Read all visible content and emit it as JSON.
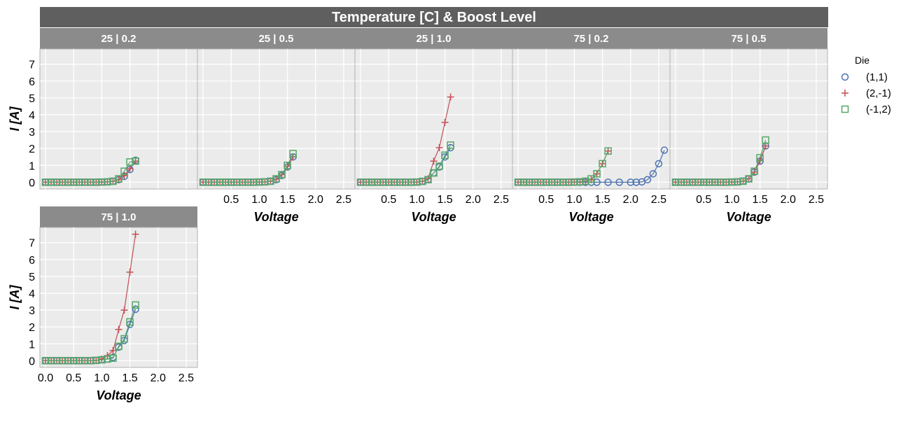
{
  "chart_data": {
    "type": "scatter",
    "title": "Temperature [C] & Boost Level",
    "xlabel": "Voltage",
    "ylabel": "I [A]",
    "xlim": [
      -0.1,
      2.7
    ],
    "ylim": [
      -0.4,
      7.9
    ],
    "xticks": [
      0.0,
      0.5,
      1.0,
      1.5,
      2.0,
      2.5
    ],
    "xtick_labels": [
      "0.0",
      "0.5",
      "1.0",
      "1.5",
      "2.0",
      "2.5"
    ],
    "yticks": [
      0,
      1,
      2,
      3,
      4,
      5,
      6,
      7
    ],
    "ytick_labels": [
      "0",
      "1",
      "2",
      "3",
      "4",
      "5",
      "6",
      "7"
    ],
    "grid": true,
    "legend": {
      "title": "Die",
      "position": "right",
      "entries": [
        {
          "name": "(1,1)",
          "marker": "circle",
          "color": "#4c72b0"
        },
        {
          "name": "(2,-1)",
          "marker": "plus",
          "color": "#c44e52"
        },
        {
          "name": "(-1,2)",
          "marker": "square",
          "color": "#55a868"
        }
      ]
    },
    "facets": [
      {
        "label": "25 | 0.2",
        "series": [
          {
            "name": "(1,1)",
            "x": [
              0.0,
              0.1,
              0.2,
              0.3,
              0.4,
              0.5,
              0.6,
              0.7,
              0.8,
              0.9,
              1.0,
              1.1,
              1.2,
              1.3,
              1.4,
              1.5,
              1.6
            ],
            "y": [
              0,
              0,
              0,
              0,
              0,
              0,
              0,
              0,
              0,
              0,
              0.01,
              0.02,
              0.05,
              0.15,
              0.35,
              0.75,
              1.3
            ]
          },
          {
            "name": "(2,-1)",
            "x": [
              0.0,
              0.1,
              0.2,
              0.3,
              0.4,
              0.5,
              0.6,
              0.7,
              0.8,
              0.9,
              1.0,
              1.1,
              1.2,
              1.3,
              1.4,
              1.5,
              1.6
            ],
            "y": [
              0,
              0,
              0,
              0,
              0,
              0,
              0,
              0,
              0,
              0,
              0.01,
              0.02,
              0.06,
              0.15,
              0.4,
              0.8,
              1.25
            ]
          },
          {
            "name": "(-1,2)",
            "x": [
              0.0,
              0.1,
              0.2,
              0.3,
              0.4,
              0.5,
              0.6,
              0.7,
              0.8,
              0.9,
              1.0,
              1.1,
              1.2,
              1.3,
              1.4,
              1.5,
              1.6
            ],
            "y": [
              0,
              0,
              0,
              0,
              0,
              0,
              0,
              0,
              0,
              0,
              0.01,
              0.02,
              0.06,
              0.2,
              0.65,
              1.2,
              1.25
            ]
          }
        ]
      },
      {
        "label": "25 | 0.5",
        "series": [
          {
            "name": "(1,1)",
            "x": [
              0.0,
              0.1,
              0.2,
              0.3,
              0.4,
              0.5,
              0.6,
              0.7,
              0.8,
              0.9,
              1.0,
              1.1,
              1.2,
              1.3,
              1.4,
              1.5,
              1.6
            ],
            "y": [
              0,
              0,
              0,
              0,
              0,
              0,
              0,
              0,
              0,
              0,
              0.01,
              0.02,
              0.05,
              0.15,
              0.4,
              0.9,
              1.5
            ]
          },
          {
            "name": "(2,-1)",
            "x": [
              0.0,
              0.1,
              0.2,
              0.3,
              0.4,
              0.5,
              0.6,
              0.7,
              0.8,
              0.9,
              1.0,
              1.1,
              1.2,
              1.3,
              1.4,
              1.5,
              1.6
            ],
            "y": [
              0,
              0,
              0,
              0,
              0,
              0,
              0,
              0,
              0,
              0,
              0.01,
              0.02,
              0.06,
              0.18,
              0.45,
              0.95,
              1.5
            ]
          },
          {
            "name": "(-1,2)",
            "x": [
              0.0,
              0.1,
              0.2,
              0.3,
              0.4,
              0.5,
              0.6,
              0.7,
              0.8,
              0.9,
              1.0,
              1.1,
              1.2,
              1.3,
              1.4,
              1.5,
              1.6
            ],
            "y": [
              0,
              0,
              0,
              0,
              0,
              0,
              0,
              0,
              0,
              0,
              0.01,
              0.02,
              0.06,
              0.2,
              0.45,
              1.0,
              1.7
            ]
          }
        ]
      },
      {
        "label": "25 | 1.0",
        "series": [
          {
            "name": "(1,1)",
            "x": [
              0.0,
              0.1,
              0.2,
              0.3,
              0.4,
              0.5,
              0.6,
              0.7,
              0.8,
              0.9,
              1.0,
              1.1,
              1.2,
              1.3,
              1.4,
              1.5,
              1.6
            ],
            "y": [
              0,
              0,
              0,
              0,
              0,
              0,
              0,
              0,
              0,
              0,
              0.01,
              0.05,
              0.15,
              0.55,
              0.9,
              1.5,
              2.05
            ]
          },
          {
            "name": "(2,-1)",
            "x": [
              0.0,
              0.1,
              0.2,
              0.3,
              0.4,
              0.5,
              0.6,
              0.7,
              0.8,
              0.9,
              1.0,
              1.1,
              1.2,
              1.3,
              1.4,
              1.5,
              1.6
            ],
            "y": [
              0,
              0,
              0,
              0,
              0,
              0,
              0,
              0,
              0,
              0,
              0.01,
              0.05,
              0.2,
              1.25,
              2.05,
              3.55,
              5.05
            ]
          },
          {
            "name": "(-1,2)",
            "x": [
              0.0,
              0.1,
              0.2,
              0.3,
              0.4,
              0.5,
              0.6,
              0.7,
              0.8,
              0.9,
              1.0,
              1.1,
              1.2,
              1.3,
              1.4,
              1.5,
              1.6
            ],
            "y": [
              0,
              0,
              0,
              0,
              0,
              0,
              0,
              0,
              0,
              0,
              0.01,
              0.05,
              0.15,
              0.55,
              0.95,
              1.6,
              2.2
            ]
          }
        ]
      },
      {
        "label": "75 | 0.2",
        "series": [
          {
            "name": "(1,1)",
            "x": [
              0.0,
              0.1,
              0.2,
              0.3,
              0.4,
              0.5,
              0.6,
              0.7,
              0.8,
              0.9,
              1.0,
              1.1,
              1.2,
              1.3,
              1.4,
              1.6,
              1.8,
              2.0,
              2.1,
              2.2,
              2.3,
              2.4,
              2.5,
              2.6
            ],
            "y": [
              0,
              0,
              0,
              0,
              0,
              0,
              0,
              0,
              0,
              0,
              0,
              0,
              0,
              0,
              0,
              0,
              0,
              0,
              0,
              0.02,
              0.15,
              0.5,
              1.1,
              1.9
            ]
          },
          {
            "name": "(2,-1)",
            "x": [
              0.0,
              0.1,
              0.2,
              0.3,
              0.4,
              0.5,
              0.6,
              0.7,
              0.8,
              0.9,
              1.0,
              1.1,
              1.2,
              1.3,
              1.4,
              1.5,
              1.6
            ],
            "y": [
              0,
              0,
              0,
              0,
              0,
              0,
              0,
              0,
              0,
              0,
              0.01,
              0.02,
              0.06,
              0.15,
              0.5,
              1.1,
              1.85
            ]
          },
          {
            "name": "(-1,2)",
            "x": [
              0.0,
              0.1,
              0.2,
              0.3,
              0.4,
              0.5,
              0.6,
              0.7,
              0.8,
              0.9,
              1.0,
              1.1,
              1.2,
              1.3,
              1.4,
              1.5,
              1.6
            ],
            "y": [
              0,
              0,
              0,
              0,
              0,
              0,
              0,
              0,
              0,
              0,
              0.01,
              0.02,
              0.06,
              0.2,
              0.5,
              1.1,
              1.85
            ]
          }
        ]
      },
      {
        "label": "75 | 0.5",
        "series": [
          {
            "name": "(1,1)",
            "x": [
              0.0,
              0.1,
              0.2,
              0.3,
              0.4,
              0.5,
              0.6,
              0.7,
              0.8,
              0.9,
              1.0,
              1.1,
              1.2,
              1.3,
              1.4,
              1.5,
              1.6
            ],
            "y": [
              0,
              0,
              0,
              0,
              0,
              0,
              0,
              0,
              0,
              0,
              0.01,
              0.02,
              0.06,
              0.2,
              0.6,
              1.25,
              2.15
            ]
          },
          {
            "name": "(2,-1)",
            "x": [
              0.0,
              0.1,
              0.2,
              0.3,
              0.4,
              0.5,
              0.6,
              0.7,
              0.8,
              0.9,
              1.0,
              1.1,
              1.2,
              1.3,
              1.4,
              1.5,
              1.6
            ],
            "y": [
              0,
              0,
              0,
              0,
              0,
              0,
              0,
              0,
              0,
              0,
              0.01,
              0.02,
              0.06,
              0.2,
              0.6,
              1.3,
              2.15
            ]
          },
          {
            "name": "(-1,2)",
            "x": [
              0.0,
              0.1,
              0.2,
              0.3,
              0.4,
              0.5,
              0.6,
              0.7,
              0.8,
              0.9,
              1.0,
              1.1,
              1.2,
              1.3,
              1.4,
              1.5,
              1.6
            ],
            "y": [
              0,
              0,
              0,
              0,
              0,
              0,
              0,
              0,
              0,
              0,
              0.01,
              0.02,
              0.06,
              0.2,
              0.65,
              1.45,
              2.5
            ]
          }
        ]
      },
      {
        "label": "75 | 1.0",
        "series": [
          {
            "name": "(1,1)",
            "x": [
              0.0,
              0.1,
              0.2,
              0.3,
              0.4,
              0.5,
              0.6,
              0.7,
              0.8,
              0.9,
              1.0,
              1.1,
              1.2,
              1.3,
              1.4,
              1.5,
              1.6
            ],
            "y": [
              0,
              0,
              0,
              0,
              0,
              0,
              0,
              0,
              0,
              0.02,
              0.05,
              0.1,
              0.2,
              0.8,
              1.2,
              2.15,
              3.05
            ]
          },
          {
            "name": "(2,-1)",
            "x": [
              0.0,
              0.1,
              0.2,
              0.3,
              0.4,
              0.5,
              0.6,
              0.7,
              0.8,
              0.9,
              1.0,
              1.1,
              1.2,
              1.3,
              1.4,
              1.5,
              1.6
            ],
            "y": [
              0,
              0,
              0,
              0,
              0,
              0,
              0,
              0,
              0,
              0.02,
              0.1,
              0.3,
              0.6,
              1.85,
              3.0,
              5.25,
              7.5
            ]
          },
          {
            "name": "(-1,2)",
            "x": [
              0.0,
              0.1,
              0.2,
              0.3,
              0.4,
              0.5,
              0.6,
              0.7,
              0.8,
              0.9,
              1.0,
              1.1,
              1.2,
              1.3,
              1.4,
              1.5,
              1.6
            ],
            "y": [
              0,
              0,
              0,
              0,
              0,
              0,
              0,
              0,
              0,
              0.02,
              0.05,
              0.1,
              0.15,
              0.85,
              1.3,
              2.3,
              3.3
            ]
          }
        ]
      }
    ]
  }
}
